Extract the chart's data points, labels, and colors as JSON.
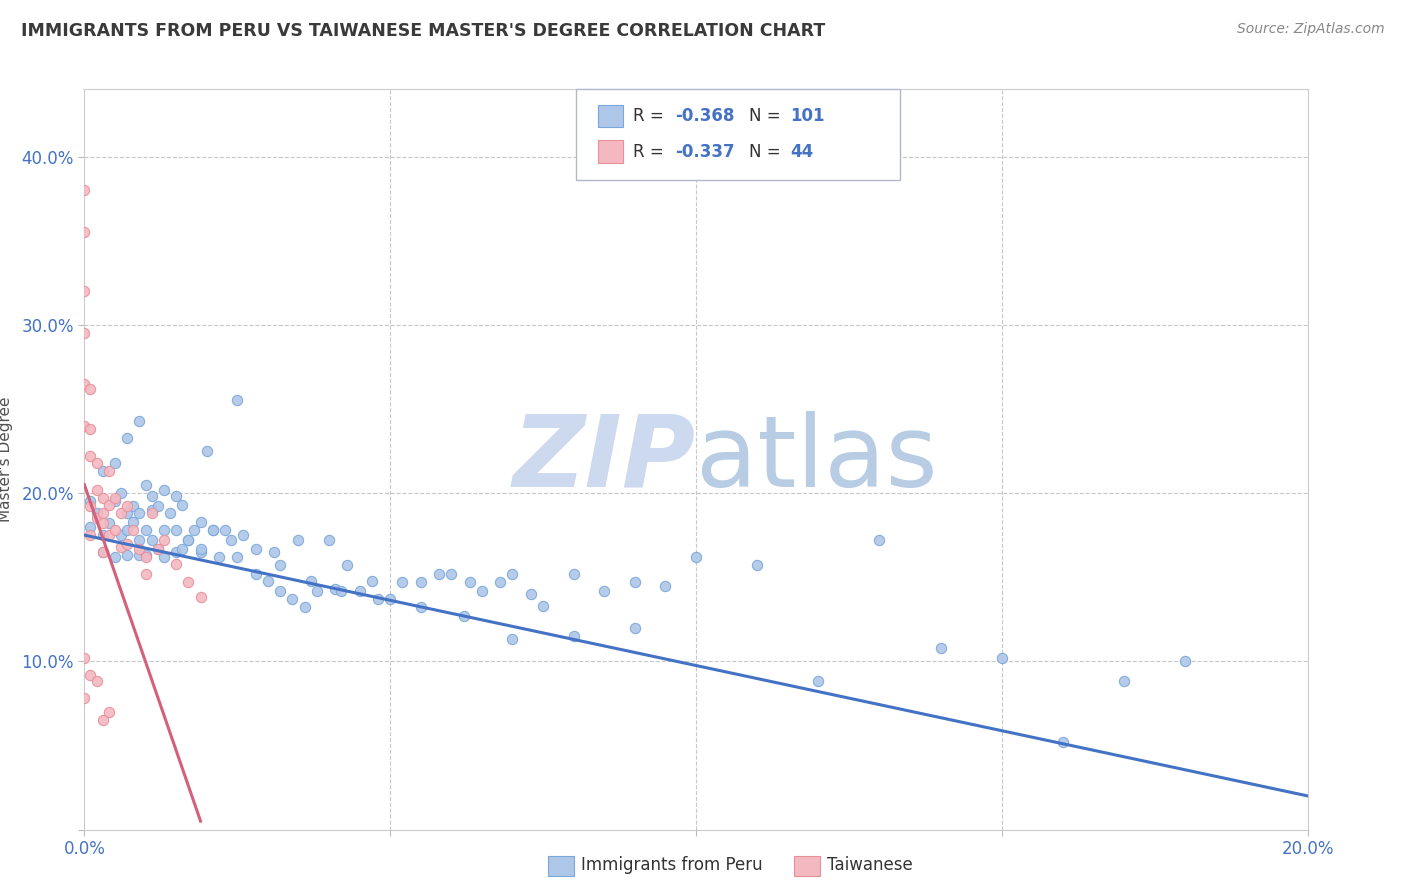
{
  "title": "IMMIGRANTS FROM PERU VS TAIWANESE MASTER'S DEGREE CORRELATION CHART",
  "source": "Source: ZipAtlas.com",
  "ylabel": "Master's Degree",
  "xlim": [
    0.0,
    0.2
  ],
  "ylim": [
    0.0,
    0.44
  ],
  "peru_line_color": "#4472c4",
  "taiwan_line_color": "#d4607a",
  "peru_dot_color": "#aec6e8",
  "taiwan_dot_color": "#f4b8c1",
  "peru_dot_edge": "#7aa8d8",
  "taiwan_dot_edge": "#e8909a",
  "background_color": "#ffffff",
  "grid_color": "#c8c8c8",
  "title_color": "#3a3a3a",
  "axis_label_color": "#505050",
  "tick_label_color": "#4472c4",
  "watermark_zip_color": "#cdd9ee",
  "watermark_atlas_color": "#b8cce4",
  "peru_line_x": [
    0.0,
    0.2
  ],
  "peru_line_y": [
    0.175,
    0.02
  ],
  "taiwan_line_x": [
    0.0,
    0.019
  ],
  "taiwan_line_y": [
    0.205,
    0.005
  ],
  "peru_scatter_x": [
    0.001,
    0.001,
    0.002,
    0.003,
    0.003,
    0.004,
    0.005,
    0.005,
    0.006,
    0.006,
    0.007,
    0.007,
    0.007,
    0.008,
    0.008,
    0.009,
    0.009,
    0.009,
    0.01,
    0.01,
    0.01,
    0.011,
    0.011,
    0.012,
    0.012,
    0.013,
    0.013,
    0.014,
    0.015,
    0.015,
    0.016,
    0.016,
    0.017,
    0.018,
    0.019,
    0.019,
    0.02,
    0.021,
    0.022,
    0.023,
    0.024,
    0.025,
    0.026,
    0.028,
    0.03,
    0.031,
    0.032,
    0.034,
    0.035,
    0.036,
    0.038,
    0.04,
    0.041,
    0.043,
    0.045,
    0.047,
    0.05,
    0.052,
    0.055,
    0.058,
    0.06,
    0.063,
    0.065,
    0.068,
    0.07,
    0.073,
    0.075,
    0.08,
    0.085,
    0.09,
    0.095,
    0.1,
    0.11,
    0.12,
    0.13,
    0.14,
    0.15,
    0.16,
    0.17,
    0.18,
    0.003,
    0.005,
    0.007,
    0.009,
    0.011,
    0.013,
    0.015,
    0.017,
    0.019,
    0.021,
    0.025,
    0.028,
    0.032,
    0.037,
    0.042,
    0.048,
    0.055,
    0.062,
    0.07,
    0.08,
    0.09
  ],
  "peru_scatter_y": [
    0.195,
    0.18,
    0.188,
    0.175,
    0.165,
    0.182,
    0.195,
    0.162,
    0.2,
    0.175,
    0.188,
    0.178,
    0.163,
    0.192,
    0.183,
    0.188,
    0.172,
    0.163,
    0.205,
    0.178,
    0.163,
    0.19,
    0.172,
    0.192,
    0.167,
    0.178,
    0.162,
    0.188,
    0.178,
    0.165,
    0.193,
    0.167,
    0.172,
    0.178,
    0.183,
    0.165,
    0.225,
    0.178,
    0.162,
    0.178,
    0.172,
    0.255,
    0.175,
    0.152,
    0.148,
    0.165,
    0.142,
    0.137,
    0.172,
    0.132,
    0.142,
    0.172,
    0.143,
    0.157,
    0.142,
    0.148,
    0.137,
    0.147,
    0.147,
    0.152,
    0.152,
    0.147,
    0.142,
    0.147,
    0.152,
    0.14,
    0.133,
    0.152,
    0.142,
    0.147,
    0.145,
    0.162,
    0.157,
    0.088,
    0.172,
    0.108,
    0.102,
    0.052,
    0.088,
    0.1,
    0.213,
    0.218,
    0.233,
    0.243,
    0.198,
    0.202,
    0.198,
    0.172,
    0.167,
    0.178,
    0.162,
    0.167,
    0.157,
    0.148,
    0.142,
    0.137,
    0.132,
    0.127,
    0.113,
    0.115,
    0.12
  ],
  "taiwan_scatter_x": [
    0.0,
    0.0,
    0.0,
    0.0,
    0.0,
    0.0,
    0.001,
    0.001,
    0.001,
    0.001,
    0.001,
    0.002,
    0.002,
    0.002,
    0.003,
    0.003,
    0.003,
    0.003,
    0.004,
    0.004,
    0.004,
    0.005,
    0.005,
    0.006,
    0.006,
    0.007,
    0.007,
    0.008,
    0.009,
    0.01,
    0.01,
    0.011,
    0.012,
    0.013,
    0.015,
    0.017,
    0.019,
    0.0,
    0.0,
    0.001,
    0.002,
    0.003,
    0.004
  ],
  "taiwan_scatter_y": [
    0.38,
    0.355,
    0.32,
    0.295,
    0.265,
    0.24,
    0.262,
    0.238,
    0.222,
    0.192,
    0.175,
    0.218,
    0.202,
    0.185,
    0.197,
    0.188,
    0.182,
    0.165,
    0.213,
    0.193,
    0.175,
    0.197,
    0.178,
    0.188,
    0.168,
    0.192,
    0.17,
    0.178,
    0.167,
    0.162,
    0.152,
    0.188,
    0.167,
    0.172,
    0.158,
    0.147,
    0.138,
    0.102,
    0.078,
    0.092,
    0.088,
    0.065,
    0.07
  ]
}
